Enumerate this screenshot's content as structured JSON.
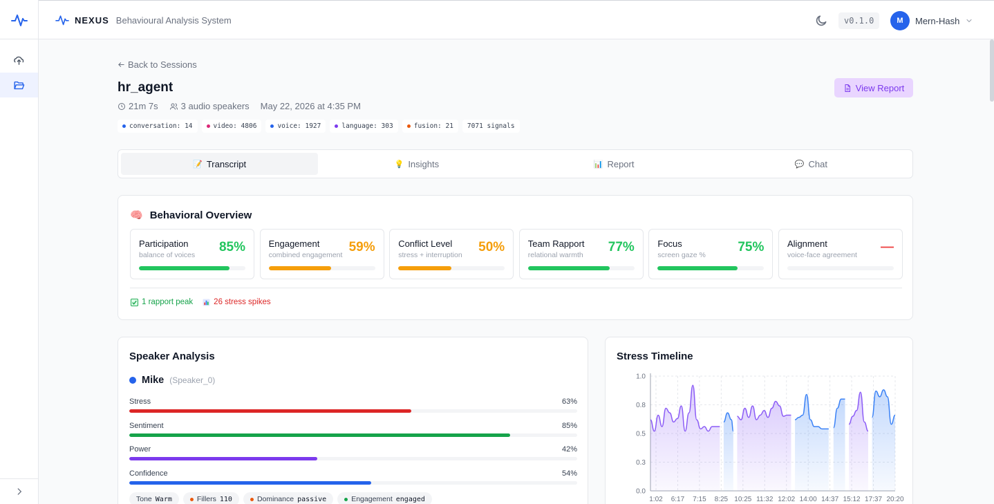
{
  "app": {
    "brand": "NEXUS",
    "subtitle": "Behavioural Analysis System",
    "version": "v0.1.0",
    "user_initial": "M",
    "user_name": "Mern-Hash"
  },
  "nav": {
    "back_label": "Back to Sessions"
  },
  "session": {
    "title": "hr_agent",
    "duration": "21m 7s",
    "speakers": "3 audio speakers",
    "datetime": "May 22, 2026 at 4:35 PM",
    "view_report_label": "View Report",
    "chips": [
      {
        "label": "conversation: 14",
        "color": "#2563eb"
      },
      {
        "label": "video: 4806",
        "color": "#db2777"
      },
      {
        "label": "voice: 1927",
        "color": "#2563eb"
      },
      {
        "label": "language: 303",
        "color": "#7c3aed"
      },
      {
        "label": "fusion: 21",
        "color": "#ea580c"
      },
      {
        "label": "7071 signals",
        "color": ""
      }
    ]
  },
  "tabs": [
    {
      "label": "Transcript",
      "icon": "📝",
      "icon_name": "memo-icon"
    },
    {
      "label": "Insights",
      "icon": "💡",
      "icon_name": "lightbulb-icon"
    },
    {
      "label": "Report",
      "icon": "📊",
      "icon_name": "bar-chart-icon"
    },
    {
      "label": "Chat",
      "icon": "💬",
      "icon_name": "speech-bubble-icon"
    }
  ],
  "overview": {
    "icon": "🧠",
    "title": "Behavioral Overview",
    "metrics": [
      {
        "name": "Participation",
        "sub": "balance of voices",
        "value": "85%",
        "level": 0.85,
        "color": "#22c55e"
      },
      {
        "name": "Engagement",
        "sub": "combined engagement",
        "value": "59%",
        "level": 0.59,
        "color": "#f59e0b"
      },
      {
        "name": "Conflict Level",
        "sub": "stress + interruption",
        "value": "50%",
        "level": 0.5,
        "color": "#f59e0b"
      },
      {
        "name": "Team Rapport",
        "sub": "relational warmth",
        "value": "77%",
        "level": 0.77,
        "color": "#22c55e"
      },
      {
        "name": "Focus",
        "sub": "screen gaze %",
        "value": "75%",
        "level": 0.75,
        "color": "#22c55e"
      },
      {
        "name": "Alignment",
        "sub": "voice-face agreement",
        "value": "—",
        "level": 0,
        "color": "#ef4444"
      }
    ],
    "rapport_peak": "1 rapport peak",
    "stress_spikes": "26 stress spikes"
  },
  "speaker_analysis": {
    "title": "Speaker Analysis",
    "speaker_name": "Mike",
    "speaker_id": "(Speaker_0)",
    "speaker_color": "#2563eb",
    "bars": [
      {
        "label": "Stress",
        "value": "63%",
        "level": 0.63,
        "color": "#dc2626"
      },
      {
        "label": "Sentiment",
        "value": "85%",
        "level": 0.85,
        "color": "#16a34a"
      },
      {
        "label": "Power",
        "value": "42%",
        "level": 0.42,
        "color": "#7c3aed"
      },
      {
        "label": "Confidence",
        "value": "54%",
        "level": 0.54,
        "color": "#2563eb"
      }
    ],
    "tags": [
      {
        "key": "Tone",
        "value": "Warm",
        "color": ""
      },
      {
        "key": "Fillers",
        "value": "110",
        "color": "#ea580c"
      },
      {
        "key": "Dominance",
        "value": "passive",
        "color": "#ea580c"
      },
      {
        "key": "Engagement",
        "value": "engaged",
        "color": "#16a34a"
      }
    ]
  },
  "chart_data": {
    "type": "area",
    "title": "Stress Timeline",
    "xlabel": "",
    "ylabel": "",
    "ylim": [
      0,
      1
    ],
    "y_ticks": [
      "0.0",
      "0.3",
      "0.5",
      "0.8",
      "1.0"
    ],
    "x_tick_labels": [
      "1:02",
      "6:17",
      "7:15",
      "8:25",
      "10:25",
      "11:32",
      "12:02",
      "14:00",
      "14:37",
      "15:12",
      "17:37",
      "20:20"
    ],
    "grid": true,
    "segments": [
      {
        "color": "#8b5cf6",
        "points": [
          [
            0.0,
            0.62
          ],
          [
            0.02,
            0.52
          ],
          [
            0.04,
            0.66
          ],
          [
            0.06,
            0.56
          ],
          [
            0.08,
            0.72
          ],
          [
            0.1,
            0.68
          ],
          [
            0.12,
            0.6
          ],
          [
            0.14,
            0.63
          ],
          [
            0.16,
            0.74
          ],
          [
            0.18,
            0.52
          ],
          [
            0.2,
            0.68
          ],
          [
            0.22,
            0.92
          ],
          [
            0.24,
            0.62
          ],
          [
            0.26,
            0.54
          ],
          [
            0.28,
            0.56
          ],
          [
            0.3,
            0.52
          ],
          [
            0.32,
            0.56
          ],
          [
            0.34,
            0.56
          ],
          [
            0.36,
            0.56
          ]
        ]
      },
      {
        "color": "#3b82f6",
        "points": [
          [
            0.38,
            0.6
          ],
          [
            0.4,
            0.68
          ],
          [
            0.42,
            0.62
          ],
          [
            0.43,
            0.52
          ]
        ]
      },
      {
        "color": "#8b5cf6",
        "points": [
          [
            0.45,
            0.65
          ],
          [
            0.47,
            0.62
          ],
          [
            0.49,
            0.72
          ],
          [
            0.51,
            0.64
          ],
          [
            0.53,
            0.74
          ],
          [
            0.55,
            0.62
          ],
          [
            0.57,
            0.66
          ],
          [
            0.59,
            0.7
          ],
          [
            0.61,
            0.64
          ],
          [
            0.63,
            0.72
          ],
          [
            0.65,
            0.78
          ],
          [
            0.67,
            0.74
          ],
          [
            0.69,
            0.65
          ],
          [
            0.71,
            0.66
          ],
          [
            0.73,
            0.66
          ]
        ]
      },
      {
        "color": "#3b82f6",
        "points": [
          [
            0.75,
            0.62
          ],
          [
            0.77,
            0.64
          ],
          [
            0.79,
            0.66
          ],
          [
            0.81,
            0.84
          ],
          [
            0.83,
            0.62
          ],
          [
            0.85,
            0.56
          ],
          [
            0.87,
            0.56
          ],
          [
            0.89,
            0.54
          ],
          [
            0.91,
            0.54
          ],
          [
            0.925,
            0.54
          ]
        ]
      },
      {
        "color": "#3b82f6",
        "points": [
          [
            0.95,
            0.55
          ],
          [
            0.97,
            0.72
          ],
          [
            0.99,
            0.8
          ],
          [
            1.01,
            0.8
          ]
        ]
      },
      {
        "color": "#8b5cf6",
        "points": [
          [
            1.03,
            0.58
          ],
          [
            1.05,
            0.65
          ],
          [
            1.07,
            0.7
          ],
          [
            1.09,
            0.86
          ],
          [
            1.11,
            0.6
          ],
          [
            1.13,
            0.52
          ]
        ]
      },
      {
        "color": "#3b82f6",
        "points": [
          [
            1.15,
            0.64
          ],
          [
            1.17,
            0.87
          ],
          [
            1.19,
            0.82
          ],
          [
            1.21,
            0.88
          ],
          [
            1.23,
            0.82
          ],
          [
            1.25,
            0.58
          ],
          [
            1.27,
            0.66
          ]
        ]
      }
    ]
  }
}
